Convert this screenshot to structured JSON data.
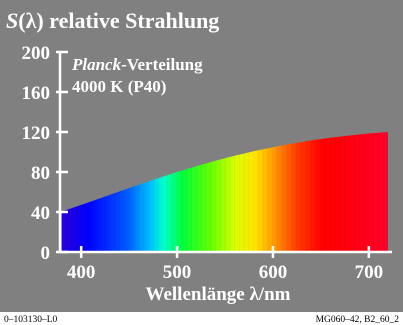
{
  "chart_data": {
    "type": "area",
    "title_symbol": "S",
    "title_lambda": "(λ)",
    "title_rest": " relative Strahlung",
    "subtitle_italic": "Planck",
    "subtitle_rest": "-Verteilung",
    "subtitle2": "4000 K (P40)",
    "xlabel": "Wellenlänge λ/nm",
    "x_ticks": [
      400,
      500,
      600,
      700
    ],
    "y_ticks": [
      0,
      40,
      80,
      120,
      160,
      200
    ],
    "xlim": [
      380,
      720
    ],
    "ylim": [
      0,
      200
    ],
    "grid": false,
    "x": [
      380,
      400,
      420,
      440,
      460,
      480,
      500,
      520,
      540,
      560,
      580,
      600,
      620,
      640,
      660,
      680,
      700,
      720
    ],
    "y": [
      40.5,
      47.1,
      53.8,
      60.6,
      67.3,
      73.8,
      80.0,
      85.8,
      91.3,
      96.3,
      100.8,
      104.8,
      108.4,
      111.6,
      114.2,
      116.5,
      118.5,
      120.0
    ],
    "colors": {
      "background": "#808080",
      "text": "#ffffff"
    }
  },
  "footer": {
    "left": "0–103130–L0",
    "right": "MG060–42, B2_60_2"
  }
}
